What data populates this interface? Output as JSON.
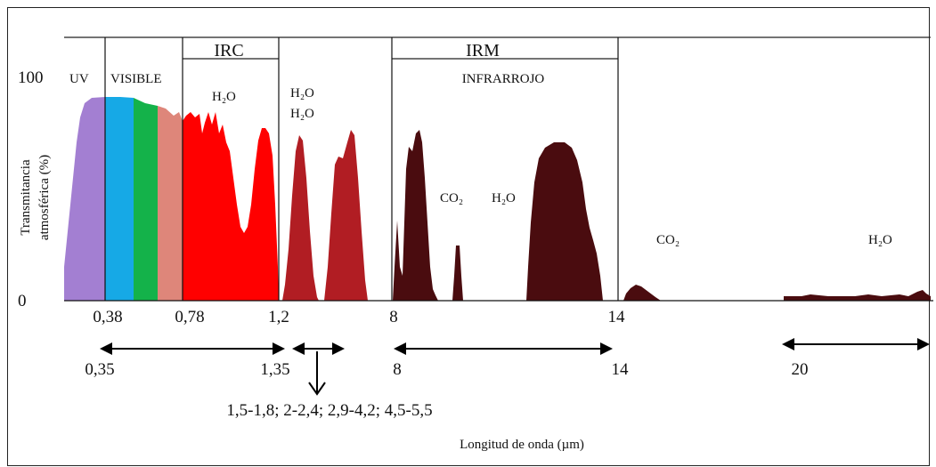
{
  "diagram": {
    "y_axis": {
      "label_line1": "Transmitancia",
      "label_line2": "atmosférica (%)",
      "tick_top": "100",
      "tick_bottom": "0"
    },
    "x_axis_label": "Longitud de onda (µm)",
    "region_headers": {
      "irc": "IRC",
      "irm": "IRM"
    },
    "region_labels": {
      "uv": "UV",
      "visible": "VISIBLE",
      "infrarrojo": "INFRARROJO"
    },
    "absorption_labels": {
      "h2o_irc": "H₂O",
      "h2o_a": "H₂O",
      "h2o_b": "H₂O",
      "co2_mid": "CO₂",
      "h2o_mid": "H₂O",
      "co2_far": "CO₂",
      "h2o_far": "H₂O"
    },
    "x_ticks": {
      "t038": "0,38",
      "t078": "0,78",
      "t12": "1,2",
      "t8": "8",
      "t14": "14"
    },
    "bands": {
      "b1_start": "0,35",
      "b1_end": "1,35",
      "b2_note": "1,5-1,8; 2-2,4; 2,9-4,2; 4,5-5,5",
      "b3_start": "8",
      "b3_end": "14",
      "b4_start": "20"
    },
    "colors": {
      "uv": "#a37fd2",
      "blue": "#16a9e6",
      "green": "#14b24a",
      "pink": "#de867a",
      "red": "#ff0000",
      "dark_red": "#b11d23",
      "maroon": "#4a0c0f"
    }
  }
}
